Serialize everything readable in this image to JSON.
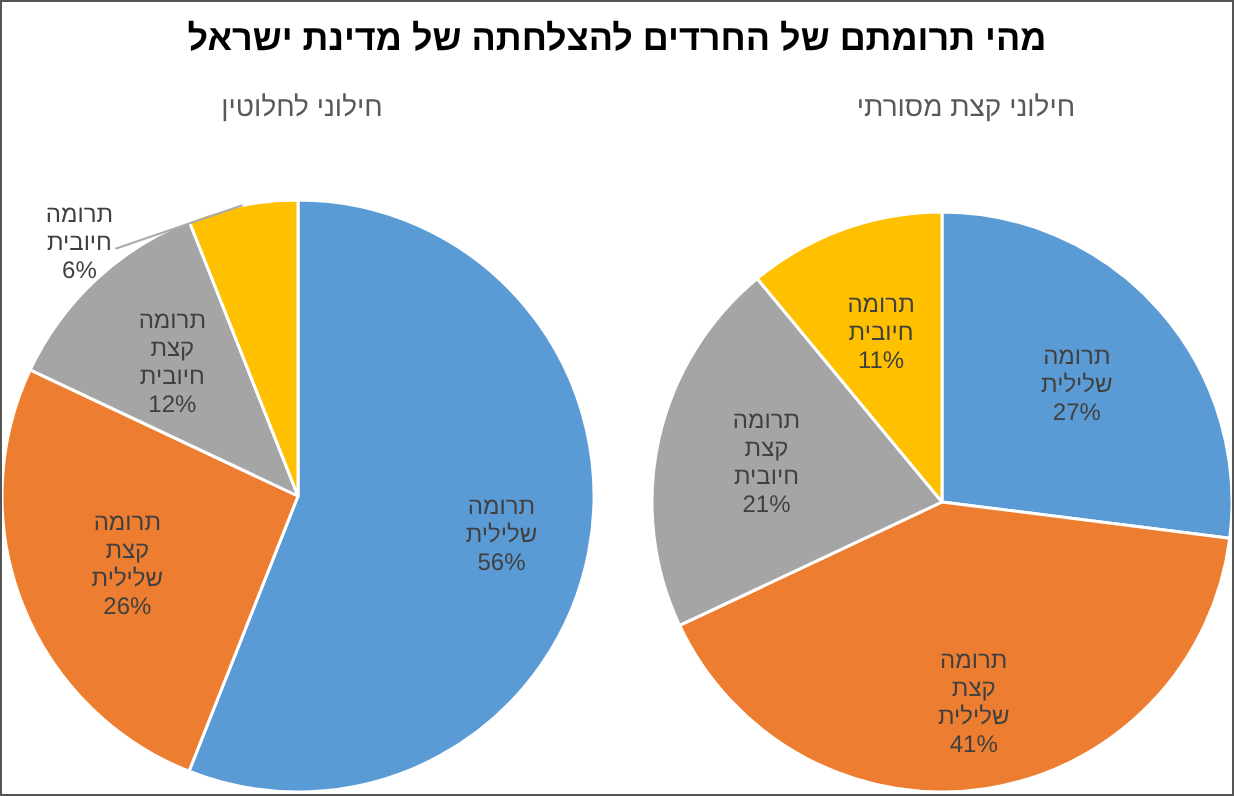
{
  "chart_data": [
    {
      "type": "pie",
      "title": "מהי תרומתם של החרדים להצלחתה של מדינת ישראל",
      "subtitle": "חילוני קצת מסורתי",
      "categories": [
        "תרומה שלילית",
        "תרומה קצת שלילית",
        "תרומה קצת חיובית",
        "תרומה חיובית"
      ],
      "values": [
        27,
        41,
        21,
        11
      ],
      "value_labels": [
        "27%",
        "41%",
        "21%",
        "11%"
      ],
      "colors": [
        "#5b9bd5",
        "#ed7d31",
        "#a5a5a5",
        "#ffc000"
      ],
      "legend": false
    },
    {
      "type": "pie",
      "subtitle": "חילוני לחלוטין",
      "categories": [
        "תרומה שלילית",
        "תרומה קצת שלילית",
        "תרומה קצת חיובית",
        "תרומה חיובית"
      ],
      "values": [
        56,
        26,
        12,
        6
      ],
      "value_labels": [
        "56%",
        "26%",
        "12%",
        "6%"
      ],
      "colors": [
        "#5b9bd5",
        "#ed7d31",
        "#a5a5a5",
        "#ffc000"
      ],
      "legend": false
    }
  ]
}
